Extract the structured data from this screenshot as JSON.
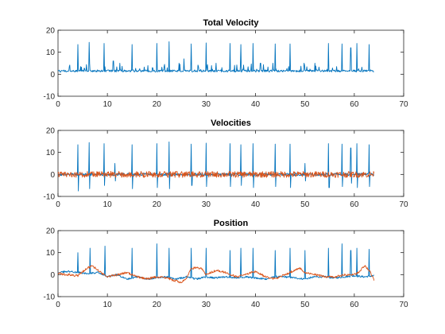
{
  "colors": {
    "series1": "#0072BD",
    "series2": "#D95319",
    "axes": "#262626",
    "background": "#ffffff"
  },
  "chart_data": [
    {
      "type": "line",
      "title": "Total Velocity",
      "xlabel": "",
      "ylabel": "",
      "xlim": [
        0,
        70
      ],
      "ylim": [
        -10,
        20
      ],
      "xticks": [
        "0",
        "10",
        "20",
        "30",
        "40",
        "50",
        "60",
        "70"
      ],
      "yticks": [
        "-10",
        "0",
        "10",
        "20"
      ],
      "grid": false,
      "spikes": [
        [
          4,
          13.5
        ],
        [
          6.3,
          14.5
        ],
        [
          9.3,
          14
        ],
        [
          11.2,
          6
        ],
        [
          12.5,
          5
        ],
        [
          15,
          13.5
        ],
        [
          20,
          14
        ],
        [
          22.5,
          14.8
        ],
        [
          24.5,
          5
        ],
        [
          25.5,
          7
        ],
        [
          27,
          13.8
        ],
        [
          30,
          14.2
        ],
        [
          32,
          5
        ],
        [
          34.8,
          14
        ],
        [
          37,
          13.5
        ],
        [
          39.5,
          14
        ],
        [
          41,
          5
        ],
        [
          43.5,
          5
        ],
        [
          44,
          13.8
        ],
        [
          47,
          13.8
        ],
        [
          49.8,
          5
        ],
        [
          52,
          5
        ],
        [
          54.8,
          14
        ],
        [
          57.5,
          13.8
        ],
        [
          59.3,
          12
        ],
        [
          60.5,
          14
        ],
        [
          63,
          13.5
        ]
      ],
      "series": [
        {
          "x_range": [
            0,
            64
          ],
          "baseline": 1.0,
          "noise": 1.2,
          "color": "#0072BD"
        }
      ]
    },
    {
      "type": "line",
      "title": "Velocities",
      "xlabel": "",
      "ylabel": "",
      "xlim": [
        0,
        70
      ],
      "ylim": [
        -10,
        20
      ],
      "xticks": [
        "0",
        "10",
        "20",
        "30",
        "40",
        "50",
        "60",
        "70"
      ],
      "yticks": [
        "-10",
        "0",
        "10",
        "20"
      ],
      "grid": false,
      "spikes": [
        [
          4,
          13.5,
          -7.5
        ],
        [
          6.3,
          14.5,
          -6.5
        ],
        [
          9.3,
          14,
          -5
        ],
        [
          11.5,
          5,
          -3
        ],
        [
          15,
          13.5,
          -6.5
        ],
        [
          20,
          14,
          -6
        ],
        [
          22.5,
          14.8,
          -6.5
        ],
        [
          27,
          13.8,
          -5
        ],
        [
          30,
          14.2,
          -5.5
        ],
        [
          34.8,
          14,
          -5.5
        ],
        [
          37,
          13.5,
          -5
        ],
        [
          39.5,
          14,
          -6
        ],
        [
          44,
          13.8,
          -5.5
        ],
        [
          47,
          13.8,
          -6
        ],
        [
          50,
          5,
          -3
        ],
        [
          54.8,
          14,
          -6
        ],
        [
          57.5,
          13.8,
          -5.5
        ],
        [
          59.3,
          12,
          -4
        ],
        [
          60.5,
          14,
          -6
        ],
        [
          63,
          13.5,
          -5.5
        ]
      ],
      "series": [
        {
          "x_range": [
            0,
            64
          ],
          "baseline": 0,
          "noise": 0.6,
          "color": "#0072BD"
        },
        {
          "x_range": [
            0,
            64
          ],
          "baseline": 0,
          "noise": 1.4,
          "color": "#D95319"
        }
      ]
    },
    {
      "type": "line",
      "title": "Position",
      "xlabel": "",
      "ylabel": "",
      "xlim": [
        0,
        70
      ],
      "ylim": [
        -10,
        20
      ],
      "xticks": [
        "0",
        "10",
        "20",
        "30",
        "40",
        "50",
        "60",
        "70"
      ],
      "yticks": [
        "-10",
        "0",
        "10",
        "20"
      ],
      "grid": false,
      "spikes": [
        [
          4,
          10
        ],
        [
          6.5,
          12
        ],
        [
          9.5,
          13
        ],
        [
          15,
          12
        ],
        [
          20,
          14
        ],
        [
          22.5,
          12
        ],
        [
          27,
          12
        ],
        [
          30,
          12
        ],
        [
          34.8,
          11
        ],
        [
          37,
          12
        ],
        [
          39.5,
          12
        ],
        [
          44,
          11
        ],
        [
          47,
          12
        ],
        [
          50,
          11
        ],
        [
          54.8,
          12
        ],
        [
          57.5,
          14
        ],
        [
          59.3,
          11
        ],
        [
          60.5,
          12
        ],
        [
          63,
          11.5
        ]
      ],
      "series": [
        {
          "x_range": [
            0,
            64
          ],
          "points": [
            [
              0,
              1
            ],
            [
              2,
              1.5
            ],
            [
              4,
              1
            ],
            [
              6,
              0.5
            ],
            [
              8,
              1
            ],
            [
              10,
              -1
            ],
            [
              12,
              0
            ],
            [
              14,
              -2
            ],
            [
              16,
              -1
            ],
            [
              18,
              -2
            ],
            [
              20,
              -1.5
            ],
            [
              22,
              -1
            ],
            [
              24,
              -2
            ],
            [
              26,
              -1
            ],
            [
              28,
              -2
            ],
            [
              30,
              -1
            ],
            [
              32,
              -1.5
            ],
            [
              34,
              -1
            ],
            [
              36,
              -1.5
            ],
            [
              38,
              -1
            ],
            [
              40,
              -1.5
            ],
            [
              42,
              -2
            ],
            [
              44,
              -1
            ],
            [
              46,
              -1
            ],
            [
              48,
              -1.5
            ],
            [
              50,
              -2
            ],
            [
              52,
              -1
            ],
            [
              54,
              -1
            ],
            [
              56,
              -1.5
            ],
            [
              58,
              -1
            ],
            [
              60,
              -0.5
            ],
            [
              62,
              -1
            ],
            [
              64,
              -0.5
            ]
          ],
          "noise": 0.4,
          "color": "#0072BD"
        },
        {
          "x_range": [
            0,
            64
          ],
          "points": [
            [
              0,
              0.5
            ],
            [
              2,
              0
            ],
            [
              4,
              -0.5
            ],
            [
              6,
              3
            ],
            [
              7,
              4
            ],
            [
              8,
              2
            ],
            [
              10,
              -1
            ],
            [
              12,
              0
            ],
            [
              14,
              1
            ],
            [
              16,
              -1
            ],
            [
              18,
              -2
            ],
            [
              20,
              -1
            ],
            [
              22,
              -1.5
            ],
            [
              24,
              -3
            ],
            [
              25,
              -3.5
            ],
            [
              26,
              -2
            ],
            [
              27,
              3
            ],
            [
              29,
              3
            ],
            [
              30,
              0
            ],
            [
              32,
              2
            ],
            [
              34,
              1
            ],
            [
              36,
              -1
            ],
            [
              38,
              0
            ],
            [
              40,
              1.5
            ],
            [
              42,
              -1
            ],
            [
              44,
              -2
            ],
            [
              46,
              0
            ],
            [
              48,
              2
            ],
            [
              49,
              3
            ],
            [
              50,
              1
            ],
            [
              52,
              0
            ],
            [
              54,
              -1
            ],
            [
              56,
              -1
            ],
            [
              58,
              0
            ],
            [
              60,
              0
            ],
            [
              61,
              1
            ],
            [
              62,
              4
            ],
            [
              63,
              2
            ],
            [
              64,
              -2.5
            ]
          ],
          "noise": 0.5,
          "color": "#D95319"
        }
      ]
    }
  ]
}
